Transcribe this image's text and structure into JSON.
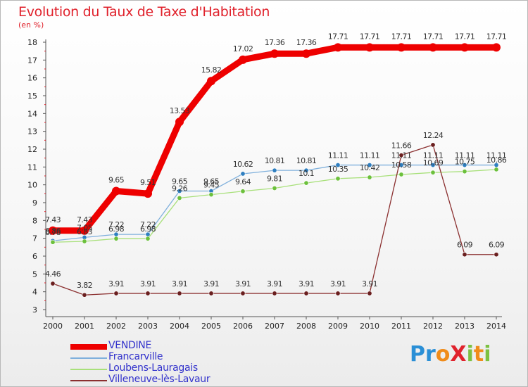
{
  "title": "Evolution du Taux de Taxe d'Habitation",
  "unit": "(en %)",
  "brand": {
    "text": "Proxiti",
    "letters": [
      {
        "ch": "P",
        "color": "#2a8fd6"
      },
      {
        "ch": "r",
        "color": "#2a8fd6"
      },
      {
        "ch": "o",
        "color": "#f08c1a"
      },
      {
        "ch": "X",
        "color": "#e0222c"
      },
      {
        "ch": "i",
        "color": "#7cc142"
      },
      {
        "ch": "t",
        "color": "#f08c1a"
      },
      {
        "ch": "i",
        "color": "#7cc142"
      }
    ]
  },
  "chart_data": {
    "type": "line",
    "x": [
      "2000",
      "2001",
      "2002",
      "2003",
      "2004",
      "2005",
      "2006",
      "2007",
      "2008",
      "2009",
      "2010",
      "2011",
      "2012",
      "2013",
      "2014"
    ],
    "ylim": [
      3,
      18
    ],
    "yticks": [
      3,
      4,
      5,
      6,
      7,
      8,
      9,
      10,
      11,
      12,
      13,
      14,
      15,
      16,
      17,
      18
    ],
    "grid": false,
    "legend_position": "bottom-left",
    "series": [
      {
        "name": "VENDINE",
        "color": "#ee0000",
        "marker_color": "#ee0000",
        "values": [
          7.43,
          7.43,
          9.65,
          9.51,
          13.53,
          15.82,
          17.02,
          17.36,
          17.36,
          17.71,
          17.71,
          17.71,
          17.71,
          17.71,
          17.71
        ],
        "labels": [
          "7.43",
          "7.43",
          "9.65",
          "9.51",
          "13.53",
          "15.82",
          "17.02",
          "17.36",
          "17.36",
          "17.71",
          "17.71",
          "17.71",
          "17.71",
          "17.71",
          "17.71"
        ]
      },
      {
        "name": "Francarville",
        "color": "#7fb0dc",
        "marker_color": "#2f7fc0",
        "values": [
          6.86,
          7.05,
          7.22,
          7.22,
          9.65,
          9.65,
          10.62,
          10.81,
          10.81,
          11.11,
          11.11,
          11.11,
          11.11,
          11.11,
          11.11
        ],
        "labels": [
          "6.86",
          "7.05",
          "7.22",
          "7.22",
          "9.65",
          "9.65",
          "10.62",
          "10.81",
          "10.81",
          "11.11",
          "11.11",
          "11.11",
          "11.11",
          "11.11",
          "11.11"
        ]
      },
      {
        "name": "Loubens-Lauragais",
        "color": "#a8e07a",
        "marker_color": "#6cc03c",
        "values": [
          6.78,
          6.83,
          6.98,
          6.98,
          9.26,
          9.45,
          9.64,
          9.81,
          10.1,
          10.35,
          10.42,
          10.58,
          10.69,
          10.75,
          10.86
        ],
        "labels": [
          "6.78",
          "6.83",
          "6.98",
          "6.98",
          "9.26",
          "9.45",
          "9.64",
          "9.81",
          "10.1",
          "10.35",
          "10.42",
          "10.58",
          "10.69",
          "10.75",
          "10.86"
        ]
      },
      {
        "name": "Villeneuve-lès-Lavaur",
        "color": "#8b3030",
        "marker_color": "#6a1f1f",
        "values": [
          4.46,
          3.82,
          3.91,
          3.91,
          3.91,
          3.91,
          3.91,
          3.91,
          3.91,
          3.91,
          3.91,
          11.66,
          12.24,
          6.09,
          6.09
        ],
        "labels": [
          "4.46",
          "3.82",
          "3.91",
          "3.91",
          "3.91",
          "3.91",
          "3.91",
          "3.91",
          "3.91",
          "3.91",
          "3.91",
          "11.66",
          "12.24",
          "6.09",
          "6.09"
        ]
      }
    ]
  }
}
